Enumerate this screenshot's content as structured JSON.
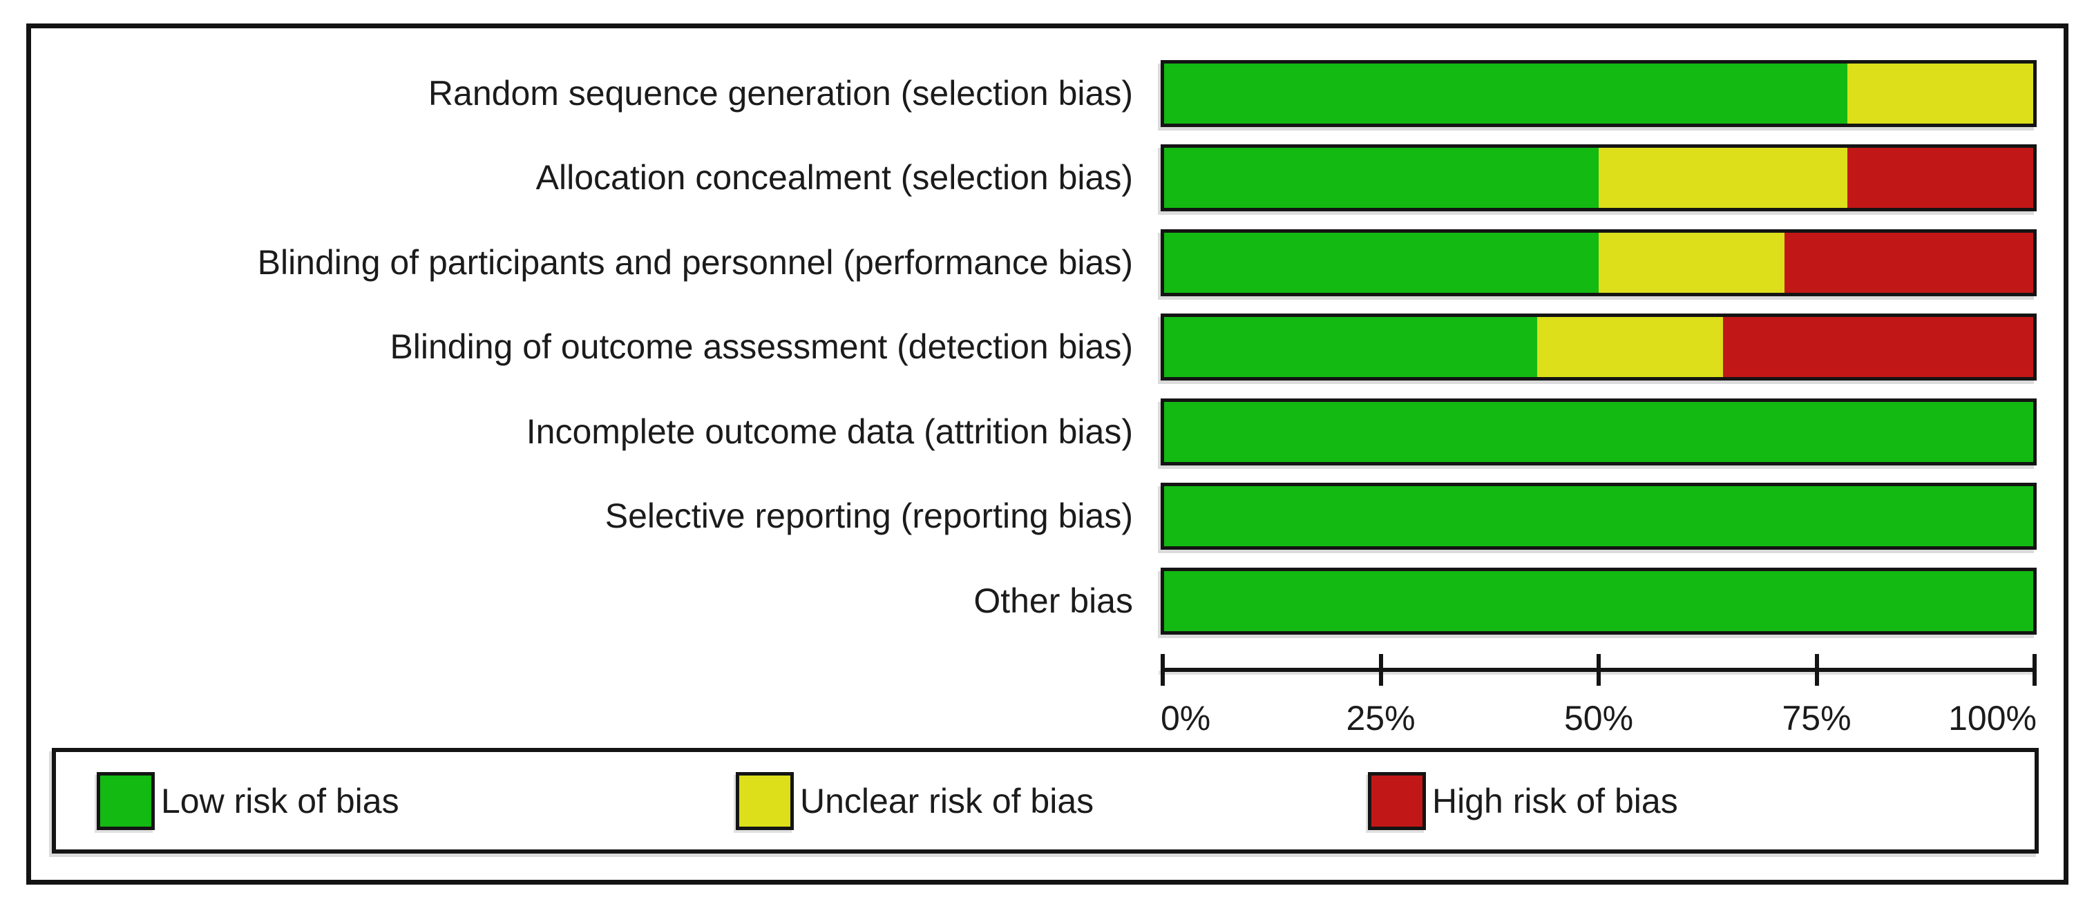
{
  "chart_data": {
    "type": "bar",
    "stacked": true,
    "orientation": "horizontal",
    "categories": [
      "Random sequence generation (selection bias)",
      "Allocation concealment (selection bias)",
      "Blinding of participants and personnel (performance bias)",
      "Blinding of outcome assessment (detection bias)",
      "Incomplete outcome data (attrition bias)",
      "Selective reporting (reporting bias)",
      "Other bias"
    ],
    "series": [
      {
        "key": "low",
        "name": "Low risk of bias",
        "color": "#12ba12",
        "values": [
          78.6,
          50.0,
          50.0,
          42.9,
          100,
          100,
          100
        ]
      },
      {
        "key": "unclear",
        "name": "Unclear risk of bias",
        "color": "#dcdf1a",
        "values": [
          21.4,
          28.6,
          21.4,
          21.4,
          0,
          0,
          0
        ]
      },
      {
        "key": "high",
        "name": "High risk of bias",
        "color": "#c21717",
        "values": [
          0,
          21.4,
          28.6,
          35.7,
          0,
          0,
          0
        ]
      }
    ],
    "x_axis": {
      "range": [
        0,
        100
      ],
      "unit": "%",
      "ticks": [
        "0%",
        "25%",
        "50%",
        "75%",
        "100%"
      ]
    },
    "legend_position": "bottom",
    "grid": false
  }
}
